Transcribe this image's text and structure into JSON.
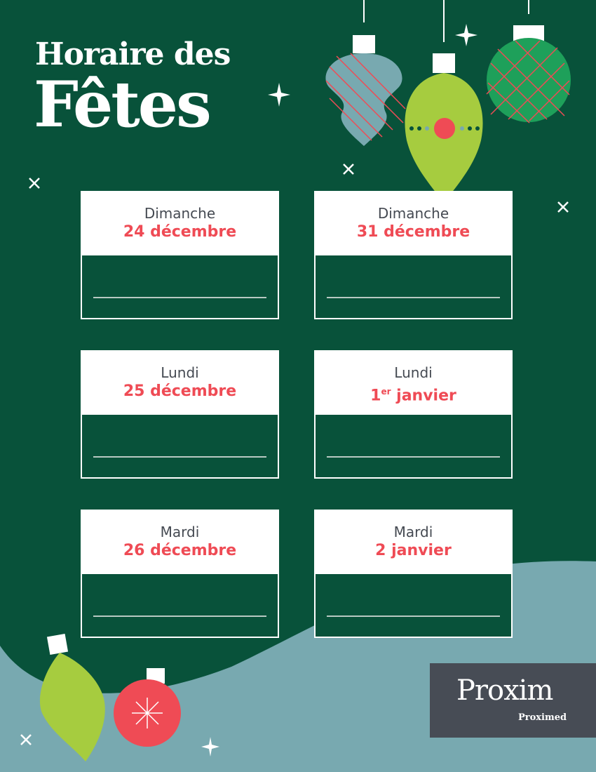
{
  "title": {
    "line1": "Horaire des",
    "line2": "Fêtes"
  },
  "colors": {
    "background": "#08523a",
    "accent_red": "#ef4b55",
    "lime": "#a6cc3f",
    "teal": "#78a9b0",
    "logo_bg": "#474c55"
  },
  "schedule": [
    {
      "day": "Dimanche",
      "date": "24 décembre",
      "hours": ""
    },
    {
      "day": "Dimanche",
      "date": "31 décembre",
      "hours": ""
    },
    {
      "day": "Lundi",
      "date": "25 décembre",
      "hours": ""
    },
    {
      "day": "Lundi",
      "date_num": "1",
      "date_sup": "er",
      "date_rest": " janvier",
      "hours": ""
    },
    {
      "day": "Mardi",
      "date": "26 décembre",
      "hours": ""
    },
    {
      "day": "Mardi",
      "date": "2 janvier",
      "hours": ""
    }
  ],
  "logo": {
    "main": "Proxim",
    "sub": "Proximed"
  }
}
